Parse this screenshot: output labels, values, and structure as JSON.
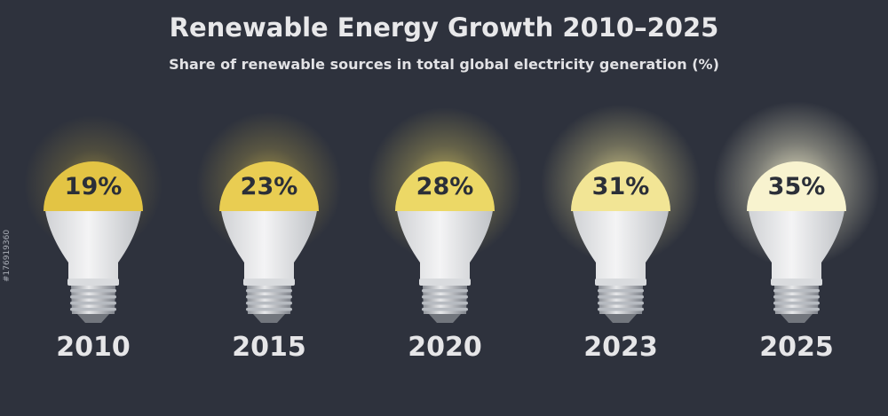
{
  "chart_data": {
    "type": "pictograph",
    "title": "Renewable Energy Growth 2010–2025",
    "subtitle": "Share of renewable sources in total global electricity generation (%)",
    "categories": [
      "2010",
      "2015",
      "2020",
      "2023",
      "2025"
    ],
    "values": [
      19,
      23,
      28,
      31,
      35
    ],
    "value_labels": [
      "19%",
      "23%",
      "28%",
      "31%",
      "35%"
    ],
    "unit": "%",
    "glow_colors": [
      "#e3c444",
      "#e9cd52",
      "#ecd866",
      "#f2e595",
      "#f8f3cf"
    ],
    "background": "#2e323d"
  },
  "watermark": {
    "stock_id": "#176919360"
  }
}
